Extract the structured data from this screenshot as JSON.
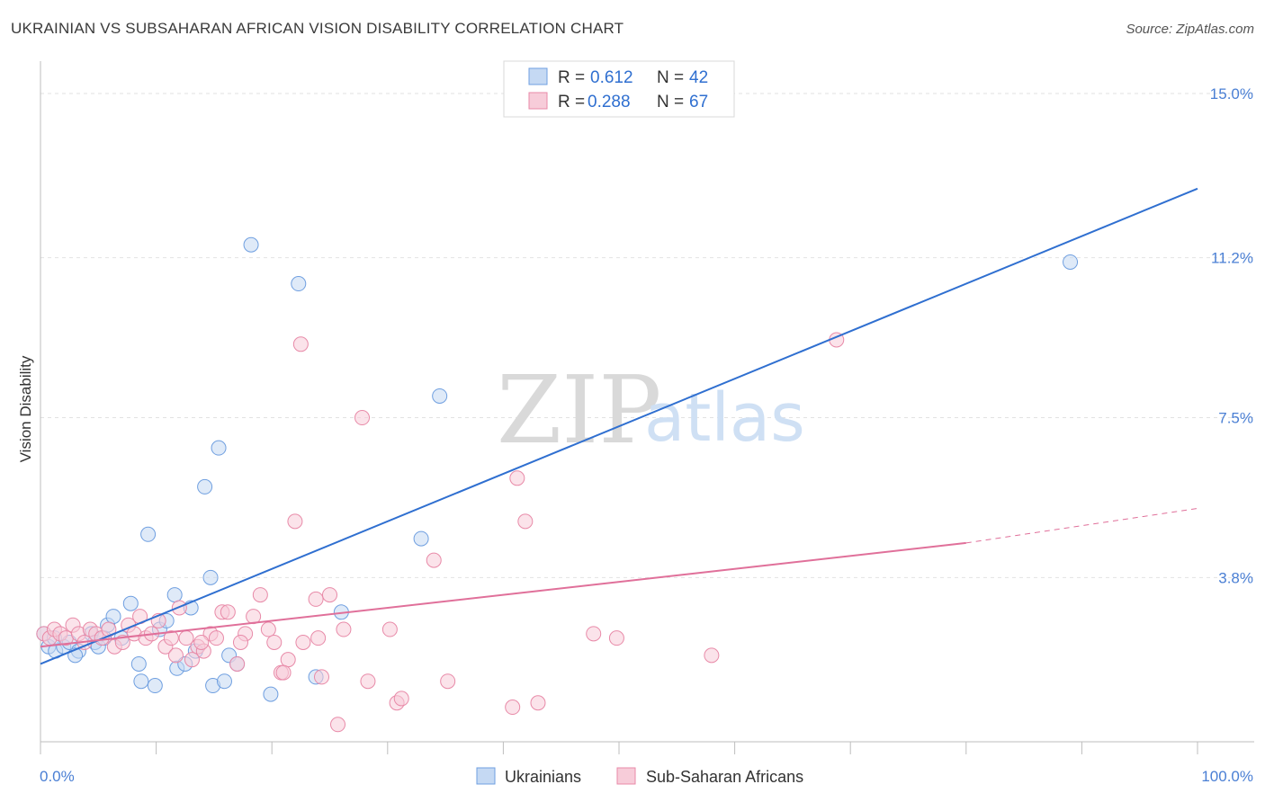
{
  "header": {
    "title": "UKRAINIAN VS SUBSAHARAN AFRICAN VISION DISABILITY CORRELATION CHART",
    "source": "Source: ZipAtlas.com"
  },
  "watermark": {
    "zip": "ZIP",
    "atlas": "atlas"
  },
  "legend": {
    "rows": [
      {
        "r_label": "R =",
        "r_value": "0.612",
        "n_label": "N =",
        "n_value": "42"
      },
      {
        "r_label": "R =",
        "r_value": "0.288",
        "n_label": "N =",
        "n_value": "67"
      }
    ]
  },
  "bottom_legend": [
    "Ukrainians",
    "Sub-Saharan Africans"
  ],
  "chart_data": {
    "type": "scatter",
    "title": "UKRAINIAN VS SUBSAHARAN AFRICAN VISION DISABILITY CORRELATION CHART",
    "xlabel": "",
    "ylabel": "Vision Disability",
    "xlim": [
      0,
      100
    ],
    "ylim": [
      0,
      15.5
    ],
    "x_tick_labels": [
      "0.0%",
      "100.0%"
    ],
    "y_ticks": [
      3.8,
      7.5,
      11.2,
      15.0
    ],
    "y_tick_labels": [
      "3.8%",
      "7.5%",
      "11.2%",
      "15.0%"
    ],
    "grid": true,
    "legend_position": "top-center",
    "colors": {
      "ukrainians": "#6f9fe0",
      "ukrainians_fill": "#c5d9f3",
      "ukrainians_line": "#2f6fd0",
      "africans": "#e88aa8",
      "africans_fill": "#f7ccd9",
      "africans_line": "#e0709a"
    },
    "series": [
      {
        "name": "Ukrainians",
        "r": 0.612,
        "n": 42,
        "trend": {
          "x": [
            0,
            100
          ],
          "y": [
            1.8,
            12.8
          ],
          "dashed_from": null
        },
        "points": [
          [
            0.3,
            2.5
          ],
          [
            0.7,
            2.2
          ],
          [
            1.3,
            2.1
          ],
          [
            2.0,
            2.2
          ],
          [
            2.5,
            2.3
          ],
          [
            3.3,
            2.1
          ],
          [
            4.4,
            2.5
          ],
          [
            4.7,
            2.3
          ],
          [
            5.0,
            2.2
          ],
          [
            5.5,
            2.4
          ],
          [
            5.8,
            2.7
          ],
          [
            6.3,
            2.9
          ],
          [
            7.0,
            2.4
          ],
          [
            7.8,
            3.2
          ],
          [
            8.5,
            1.8
          ],
          [
            8.7,
            1.4
          ],
          [
            9.3,
            4.8
          ],
          [
            9.9,
            1.3
          ],
          [
            10.3,
            2.6
          ],
          [
            10.9,
            2.8
          ],
          [
            11.6,
            3.4
          ],
          [
            11.8,
            1.7
          ],
          [
            12.5,
            1.8
          ],
          [
            13.0,
            3.1
          ],
          [
            13.4,
            2.1
          ],
          [
            14.2,
            5.9
          ],
          [
            14.7,
            3.8
          ],
          [
            14.9,
            1.3
          ],
          [
            15.4,
            6.8
          ],
          [
            15.9,
            1.4
          ],
          [
            16.3,
            2.0
          ],
          [
            17.0,
            1.8
          ],
          [
            18.2,
            11.5
          ],
          [
            19.9,
            1.1
          ],
          [
            22.3,
            10.6
          ],
          [
            23.8,
            1.5
          ],
          [
            26.0,
            3.0
          ],
          [
            32.9,
            4.7
          ],
          [
            34.5,
            8.0
          ],
          [
            89.0,
            11.1
          ],
          [
            1.2,
            2.4
          ],
          [
            3.0,
            2.0
          ]
        ]
      },
      {
        "name": "Sub-Saharan Africans",
        "r": 0.288,
        "n": 67,
        "trend": {
          "x": [
            0,
            80,
            100
          ],
          "y": [
            2.2,
            4.6,
            5.4
          ],
          "dashed_from": 80
        },
        "points": [
          [
            0.3,
            2.5
          ],
          [
            0.8,
            2.4
          ],
          [
            1.2,
            2.6
          ],
          [
            1.7,
            2.5
          ],
          [
            2.2,
            2.4
          ],
          [
            2.8,
            2.7
          ],
          [
            3.3,
            2.5
          ],
          [
            3.8,
            2.3
          ],
          [
            4.3,
            2.6
          ],
          [
            4.8,
            2.5
          ],
          [
            5.3,
            2.4
          ],
          [
            5.9,
            2.6
          ],
          [
            6.4,
            2.2
          ],
          [
            7.1,
            2.3
          ],
          [
            7.6,
            2.7
          ],
          [
            8.1,
            2.5
          ],
          [
            8.6,
            2.9
          ],
          [
            9.1,
            2.4
          ],
          [
            9.6,
            2.5
          ],
          [
            10.2,
            2.8
          ],
          [
            10.8,
            2.2
          ],
          [
            11.3,
            2.4
          ],
          [
            12.0,
            3.1
          ],
          [
            12.6,
            2.4
          ],
          [
            13.1,
            1.9
          ],
          [
            13.6,
            2.2
          ],
          [
            14.1,
            2.1
          ],
          [
            14.7,
            2.5
          ],
          [
            15.2,
            2.4
          ],
          [
            15.7,
            3.0
          ],
          [
            16.2,
            3.0
          ],
          [
            17.0,
            1.8
          ],
          [
            17.7,
            2.5
          ],
          [
            18.4,
            2.9
          ],
          [
            19.0,
            3.4
          ],
          [
            19.7,
            2.6
          ],
          [
            20.2,
            2.3
          ],
          [
            20.8,
            1.6
          ],
          [
            21.4,
            1.9
          ],
          [
            22.5,
            9.2
          ],
          [
            22.7,
            2.3
          ],
          [
            23.8,
            3.3
          ],
          [
            24.3,
            1.5
          ],
          [
            25.0,
            3.4
          ],
          [
            25.7,
            0.4
          ],
          [
            26.2,
            2.6
          ],
          [
            27.8,
            7.5
          ],
          [
            28.3,
            1.4
          ],
          [
            30.2,
            2.6
          ],
          [
            30.8,
            0.9
          ],
          [
            31.2,
            1.0
          ],
          [
            34.0,
            4.2
          ],
          [
            35.2,
            1.4
          ],
          [
            40.8,
            0.8
          ],
          [
            41.2,
            6.1
          ],
          [
            41.9,
            5.1
          ],
          [
            43.0,
            0.9
          ],
          [
            47.8,
            2.5
          ],
          [
            49.8,
            2.4
          ],
          [
            58.0,
            2.0
          ],
          [
            68.8,
            9.3
          ],
          [
            21.0,
            1.6
          ],
          [
            11.7,
            2.0
          ],
          [
            17.3,
            2.3
          ],
          [
            13.9,
            2.3
          ],
          [
            24.0,
            2.4
          ],
          [
            22.0,
            5.1
          ]
        ]
      }
    ]
  }
}
